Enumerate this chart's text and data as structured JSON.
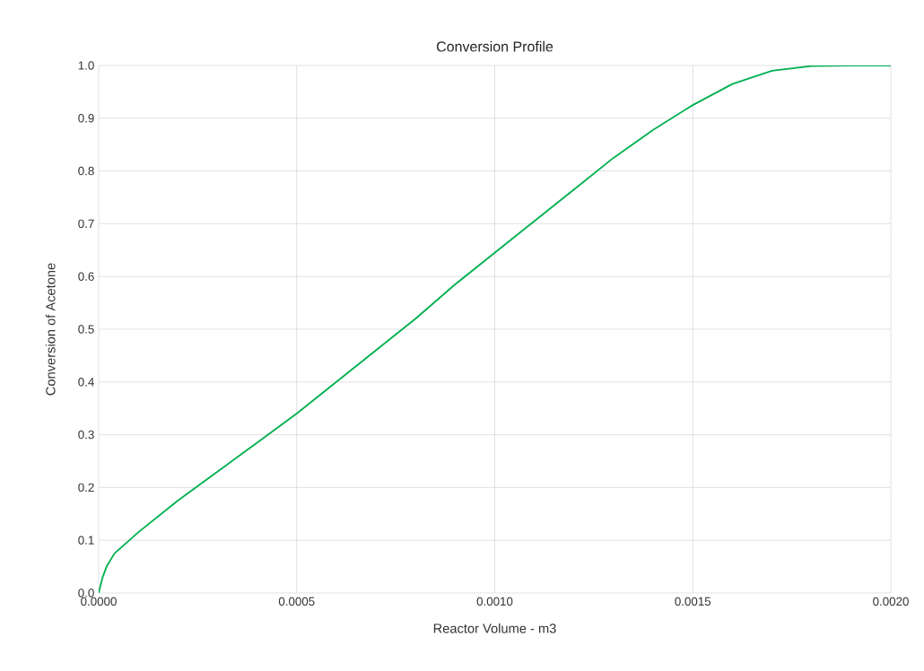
{
  "chart_data": {
    "type": "line",
    "title": "Conversion Profile",
    "xlabel": "Reactor Volume - m3",
    "ylabel": "Conversion of Acetone",
    "color": "#00b050",
    "grid": true,
    "marker": "none",
    "line_style": "solid",
    "x": [
      0,
      1e-05,
      2e-05,
      4e-05,
      7e-05,
      0.0001,
      0.00015,
      0.0002,
      0.0003,
      0.0004,
      0.0005,
      0.0006,
      0.0007,
      0.0008,
      0.0009,
      0.001,
      0.0011,
      0.0012,
      0.0013,
      0.0014,
      0.0015,
      0.0016,
      0.0017,
      0.0018,
      0.0019,
      0.002
    ],
    "values": [
      0,
      0.03,
      0.05,
      0.075,
      0.095,
      0.115,
      0.145,
      0.175,
      0.23,
      0.285,
      0.34,
      0.4,
      0.46,
      0.52,
      0.585,
      0.645,
      0.705,
      0.765,
      0.825,
      0.878,
      0.925,
      0.965,
      0.99,
      0.999,
      1.0,
      1.0
    ],
    "xlim": [
      0,
      0.002
    ],
    "ylim": [
      0,
      1
    ],
    "xticks": [
      {
        "value": 0,
        "label": "0.0000"
      },
      {
        "value": 0.0005,
        "label": "0.0005"
      },
      {
        "value": 0.001,
        "label": "0.0010"
      },
      {
        "value": 0.0015,
        "label": "0.0015"
      },
      {
        "value": 0.002,
        "label": "0.0020"
      }
    ],
    "yticks": [
      {
        "value": 0,
        "label": "0.0"
      },
      {
        "value": 0.1,
        "label": "0.1"
      },
      {
        "value": 0.2,
        "label": "0.2"
      },
      {
        "value": 0.3,
        "label": "0.3"
      },
      {
        "value": 0.4,
        "label": "0.4"
      },
      {
        "value": 0.5,
        "label": "0.5"
      },
      {
        "value": 0.6,
        "label": "0.6"
      },
      {
        "value": 0.7,
        "label": "0.7"
      },
      {
        "value": 0.8,
        "label": "0.8"
      },
      {
        "value": 0.9,
        "label": "0.9"
      },
      {
        "value": 1.0,
        "label": "1.0"
      }
    ]
  }
}
